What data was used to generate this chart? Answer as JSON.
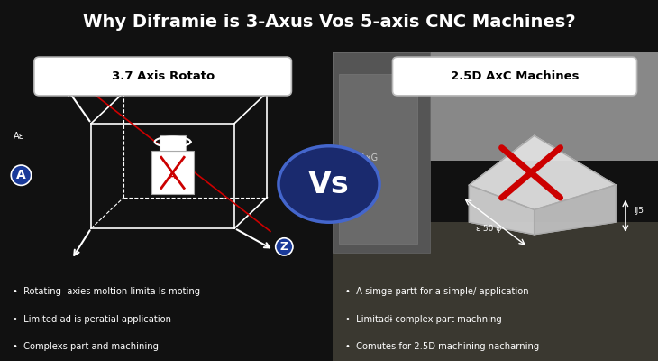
{
  "title": "Why Diframie is 3-Axus Vos 5-axis CNC Machines?",
  "title_color": "#ffffff",
  "title_bg": "#111111",
  "left_bg": "#1a3a99",
  "left_label": "3.7 Axis Rotato",
  "right_label": "2.5D AxC Machines",
  "vs_text": "Vs",
  "left_bullets": [
    "Rotating  axies moltion limita ls moting",
    "Limited ad is peratial application",
    "Complexs part and machining"
  ],
  "right_bullets": [
    "A simge partt for a simple/ application",
    "Limitadɨ complex part machning",
    "Comutes for 2.5D machining nacharning"
  ],
  "left_label_bg": "#ffffff",
  "right_label_bg": "#ffffff",
  "left_label_color": "#000000",
  "right_label_color": "#000000",
  "bullet_color_left": "#ffffff",
  "bullet_color_right": "#ffffff",
  "diagram_color": "#ffffff",
  "red_color": "#cc0000",
  "separator_color": "#2244bb",
  "vs_bg": "#1a2a6e",
  "right_panel_bg": "#555550"
}
